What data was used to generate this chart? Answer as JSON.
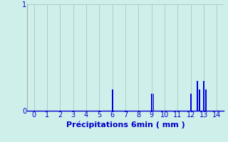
{
  "xlabel": "Précipitations 6min ( mm )",
  "background_color": "#cff0ea",
  "bar_color": "#0000dd",
  "grid_color": "#aacccc",
  "text_color": "#0000cc",
  "axis_color": "#aaaaaa",
  "bottom_color": "#0000cc",
  "xlim": [
    -0.5,
    14.5
  ],
  "ylim": [
    0,
    1.0
  ],
  "xticks": [
    0,
    1,
    2,
    3,
    4,
    5,
    6,
    7,
    8,
    9,
    10,
    11,
    12,
    13,
    14
  ],
  "yticks": [
    0,
    1
  ],
  "bar_positions": [
    6.0,
    9.0,
    9.15,
    12.0,
    12.5,
    12.65,
    13.0,
    13.15
  ],
  "bar_heights": [
    0.2,
    0.16,
    0.16,
    0.16,
    0.28,
    0.2,
    0.28,
    0.2
  ],
  "bar_width": 0.1,
  "tick_fontsize": 7,
  "xlabel_fontsize": 8
}
